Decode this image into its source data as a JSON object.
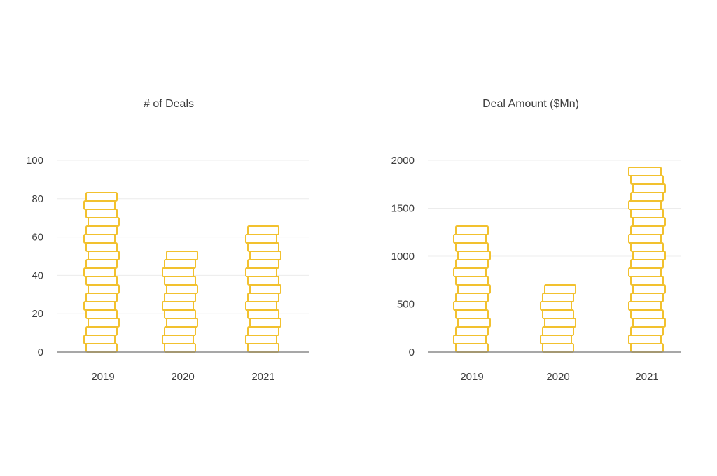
{
  "colors": {
    "coin": "#f2c12e"
  },
  "chart_data": [
    {
      "type": "bar",
      "title": "# of Deals",
      "categories": [
        "2019",
        "2020",
        "2021"
      ],
      "values": [
        87,
        56,
        69
      ],
      "ylim": [
        0,
        100
      ],
      "yticks": [
        "0",
        "20",
        "40",
        "60",
        "80",
        "100"
      ],
      "xlabel": "",
      "ylabel": "",
      "grid": true
    },
    {
      "type": "bar",
      "title": "Deal Amount ($Mn)",
      "categories": [
        "2019",
        "2020",
        "2021"
      ],
      "values": [
        1380,
        730,
        1930
      ],
      "ylim": [
        0,
        2000
      ],
      "yticks": [
        "0",
        "500",
        "1000",
        "1500",
        "2000"
      ],
      "xlabel": "",
      "ylabel": "",
      "grid": true
    }
  ]
}
